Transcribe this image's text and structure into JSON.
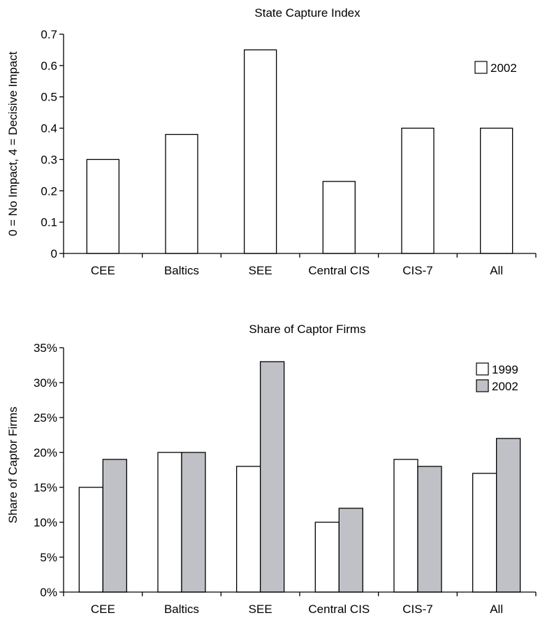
{
  "chart_data": [
    {
      "type": "bar",
      "title": "State Capture Index",
      "xlabel": "",
      "ylabel": "0 = No Impact, 4 = Decisive Impact",
      "categories": [
        "CEE",
        "Baltics",
        "SEE",
        "Central CIS",
        "CIS-7",
        "All"
      ],
      "ylim": [
        0,
        0.7
      ],
      "yticks": [
        "0",
        "0.1",
        "0.2",
        "0.3",
        "0.4",
        "0.5",
        "0.6",
        "0.7"
      ],
      "series": [
        {
          "name": "2002",
          "color": "#ffffff",
          "values": [
            0.3,
            0.38,
            0.65,
            0.23,
            0.4,
            0.4
          ]
        }
      ],
      "legend": "top-right",
      "grid": false
    },
    {
      "type": "bar",
      "title": "Share of Captor Firms",
      "xlabel": "",
      "ylabel": "Share of Captor Firms",
      "categories": [
        "CEE",
        "Baltics",
        "SEE",
        "Central CIS",
        "CIS-7",
        "All"
      ],
      "ylim": [
        0,
        35
      ],
      "yticks": [
        "0%",
        "5%",
        "10%",
        "15%",
        "20%",
        "25%",
        "30%",
        "35%"
      ],
      "series": [
        {
          "name": "1999",
          "color": "#ffffff",
          "values": [
            15,
            20,
            18,
            10,
            19,
            17
          ]
        },
        {
          "name": "2002",
          "color": "#c0c1c6",
          "values": [
            19,
            20,
            33,
            12,
            18,
            22
          ]
        }
      ],
      "legend": "top-right",
      "grid": false
    }
  ]
}
